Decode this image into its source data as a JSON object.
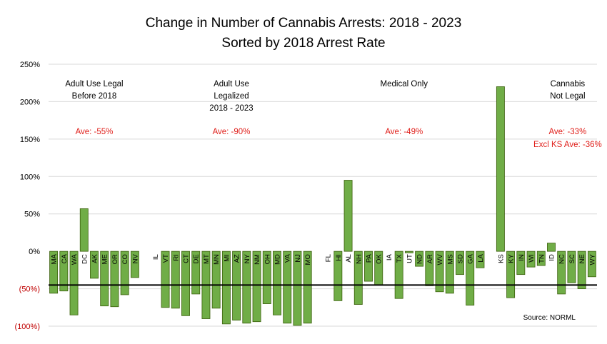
{
  "chart_data": {
    "type": "bar",
    "title": [
      "Change in Number of Cannabis Arrests: 2018 - 2023",
      "Sorted by 2018 Arrest Rate"
    ],
    "xlabel": "",
    "ylabel": "",
    "ylim": [
      -100,
      250
    ],
    "yticks": [
      {
        "value": 250,
        "label": "250%"
      },
      {
        "value": 200,
        "label": "200%"
      },
      {
        "value": 150,
        "label": "150%"
      },
      {
        "value": 100,
        "label": "100%"
      },
      {
        "value": 50,
        "label": "50%"
      },
      {
        "value": 0,
        "label": "0%"
      },
      {
        "value": -50,
        "label": "(50%)"
      },
      {
        "value": -100,
        "label": "(100%)"
      }
    ],
    "categories": [
      "MA",
      "CA",
      "WA",
      "DC",
      "AK",
      "ME",
      "OR",
      "CO",
      "NV",
      "",
      "IL",
      "VT",
      "RI",
      "CT",
      "DE",
      "MT",
      "MN",
      "MI",
      "AZ",
      "NY",
      "NM",
      "OH",
      "MD",
      "VA",
      "NJ",
      "MO",
      "",
      "FL",
      "HI",
      "AL",
      "NH",
      "PA",
      "OK",
      "IA",
      "TX",
      "UT",
      "ND",
      "AR",
      "WV",
      "MS",
      "SD",
      "GA",
      "LA",
      "",
      "KS",
      "KY",
      "IN",
      "WI",
      "TN",
      "ID",
      "NC",
      "SC",
      "NE",
      "WY"
    ],
    "values": [
      -56,
      -53,
      -85,
      57,
      -36,
      -73,
      -74,
      -58,
      -35,
      null,
      0,
      -75,
      -76,
      -86,
      -57,
      -90,
      -76,
      -97,
      -92,
      -96,
      -94,
      -70,
      -85,
      -96,
      -99,
      -96,
      null,
      0,
      -66,
      95,
      -71,
      -40,
      -45,
      0,
      -63,
      -2,
      -20,
      -46,
      -54,
      -56,
      -31,
      -72,
      -22,
      null,
      220,
      -62,
      -31,
      -21,
      -19,
      11,
      -57,
      -42,
      -50,
      -34
    ],
    "series": [
      {
        "name": "",
        "color": "#70AD47"
      }
    ],
    "colors": {
      "bar_fill": "#70AD47",
      "bar_stroke": "#3A5F0B",
      "negative_tick": "#C00000",
      "annotation": "#E0201B",
      "gridline": "#D9D9D9",
      "average_line": "#000000"
    },
    "average_line": -45,
    "grid": true,
    "legend": "none",
    "groups": [
      {
        "name_lines": [
          "Adult Use Legal",
          "Before 2018"
        ],
        "average": "Ave: -55%",
        "average_extra": "",
        "first": 0,
        "last": 8
      },
      {
        "name_lines": [
          "Adult Use",
          "Legalized",
          "2018 - 2023"
        ],
        "average": "Ave: -90%",
        "average_extra": "",
        "first": 10,
        "last": 25
      },
      {
        "name_lines": [
          "Medical Only"
        ],
        "average": "Ave: -49%",
        "average_extra": "",
        "first": 27,
        "last": 42
      },
      {
        "name_lines": [
          "Cannabis",
          "Not Legal"
        ],
        "average": "Ave: -33%",
        "average_extra": "Excl KS Ave: -36%",
        "first": 44,
        "last": 53
      }
    ],
    "source": "Source: NORML"
  }
}
